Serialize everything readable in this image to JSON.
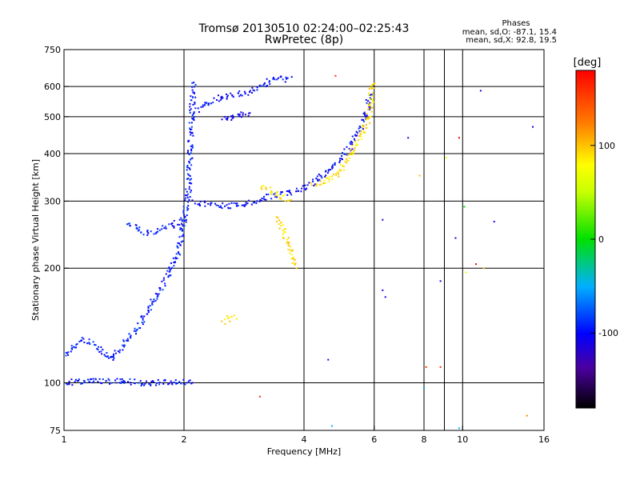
{
  "chart_data": {
    "type": "scatter",
    "title": "Tromsø 20130510 02:24:00–02:25:43",
    "subtitle": "RwPretec (8p)",
    "header_right": {
      "title": "Phases",
      "line_o": "mean, sd,O: -87.1, 15.4",
      "line_x": "mean, sd,X:  92.8, 19.5"
    },
    "xlabel": "Frequency [MHz]",
    "ylabel": "Stationary phase Virtual Height [km]",
    "x_scale": "log",
    "y_scale": "log",
    "xlim": [
      1,
      16
    ],
    "ylim": [
      75,
      750
    ],
    "x_ticks": [
      {
        "value": 1,
        "label": "1"
      },
      {
        "value": 2,
        "label": "2"
      },
      {
        "value": 4,
        "label": "4"
      },
      {
        "value": 6,
        "label": "6"
      },
      {
        "value": 8,
        "label": "8"
      },
      {
        "value": 10,
        "label": "10"
      },
      {
        "value": 16,
        "label": "16"
      }
    ],
    "y_ticks": [
      {
        "value": 75,
        "label": "75"
      },
      {
        "value": 100,
        "label": "100"
      },
      {
        "value": 200,
        "label": "200"
      },
      {
        "value": 300,
        "label": "300"
      },
      {
        "value": 400,
        "label": "400"
      },
      {
        "value": 500,
        "label": "500"
      },
      {
        "value": 600,
        "label": "600"
      },
      {
        "value": 750,
        "label": "750"
      }
    ],
    "x_grid": [
      2,
      4,
      6,
      8,
      9,
      10
    ],
    "y_grid": [
      100,
      200,
      300,
      400,
      500,
      600
    ],
    "grid": true,
    "colorbar": {
      "unit": "[deg]",
      "range": [
        -180,
        180
      ],
      "ticks": [
        {
          "value": 100,
          "label": "100"
        },
        {
          "value": 0,
          "label": "0"
        },
        {
          "value": -100,
          "label": "-100"
        }
      ]
    },
    "traces": [
      {
        "phase": -95,
        "points": [
          [
            1.0,
            118
          ],
          [
            1.04,
            122
          ],
          [
            1.08,
            126
          ],
          [
            1.12,
            130
          ],
          [
            1.18,
            126
          ],
          [
            1.25,
            120
          ],
          [
            1.32,
            116
          ],
          [
            1.4,
            124
          ],
          [
            1.48,
            134
          ],
          [
            1.55,
            142
          ],
          [
            1.62,
            154
          ],
          [
            1.7,
            168
          ],
          [
            1.78,
            182
          ],
          [
            1.86,
            198
          ],
          [
            1.93,
            222
          ],
          [
            2.0,
            262
          ],
          [
            2.05,
            320
          ],
          [
            2.08,
            420
          ],
          [
            2.1,
            520
          ],
          [
            2.12,
            620
          ]
        ]
      },
      {
        "phase": -100,
        "points": [
          [
            2.12,
            298
          ],
          [
            2.4,
            292
          ],
          [
            2.7,
            292
          ],
          [
            3.0,
            298
          ],
          [
            3.2,
            306
          ],
          [
            3.5,
            312
          ],
          [
            3.8,
            318
          ],
          [
            4.1,
            330
          ],
          [
            4.4,
            346
          ],
          [
            4.7,
            366
          ],
          [
            4.95,
            388
          ],
          [
            5.2,
            412
          ],
          [
            5.4,
            442
          ],
          [
            5.55,
            470
          ],
          [
            5.7,
            500
          ],
          [
            5.8,
            540
          ],
          [
            5.85,
            580
          ]
        ]
      },
      {
        "phase": 90,
        "points": [
          [
            4.2,
            330
          ],
          [
            4.5,
            338
          ],
          [
            4.8,
            352
          ],
          [
            5.0,
            368
          ],
          [
            5.2,
            392
          ],
          [
            5.4,
            418
          ],
          [
            5.6,
            450
          ],
          [
            5.75,
            480
          ],
          [
            5.85,
            520
          ],
          [
            5.9,
            560
          ],
          [
            5.95,
            620
          ]
        ]
      },
      {
        "phase": -100,
        "points": [
          [
            2.15,
            520
          ],
          [
            2.3,
            540
          ],
          [
            2.45,
            560
          ],
          [
            2.6,
            565
          ],
          [
            2.9,
            580
          ],
          [
            3.1,
            600
          ],
          [
            3.3,
            620
          ],
          [
            3.5,
            630
          ],
          [
            3.7,
            625
          ]
        ]
      },
      {
        "phase": -95,
        "points": [
          [
            1.0,
            100
          ],
          [
            1.1,
            101
          ],
          [
            1.2,
            101
          ],
          [
            1.3,
            101
          ],
          [
            1.4,
            101
          ],
          [
            1.55,
            100
          ],
          [
            1.7,
            100
          ],
          [
            1.9,
            101
          ],
          [
            2.1,
            100
          ]
        ]
      },
      {
        "phase": -95,
        "points": [
          [
            1.45,
            262
          ],
          [
            1.55,
            250
          ],
          [
            1.65,
            248
          ],
          [
            1.78,
            255
          ],
          [
            1.9,
            262
          ],
          [
            2.0,
            270
          ]
        ]
      },
      {
        "phase": 85,
        "points": [
          [
            3.1,
            330
          ],
          [
            3.3,
            320
          ],
          [
            3.5,
            310
          ],
          [
            3.7,
            300
          ]
        ]
      },
      {
        "phase": 90,
        "points": [
          [
            3.4,
            270
          ],
          [
            3.55,
            250
          ],
          [
            3.65,
            230
          ],
          [
            3.75,
            210
          ],
          [
            3.8,
            200
          ]
        ]
      },
      {
        "phase": 90,
        "points": [
          [
            2.5,
            145
          ],
          [
            2.6,
            148
          ],
          [
            2.7,
            150
          ]
        ]
      },
      {
        "phase": -110,
        "points": [
          [
            2.5,
            490
          ],
          [
            2.65,
            500
          ],
          [
            2.8,
            510
          ],
          [
            2.95,
            505
          ]
        ]
      }
    ],
    "isolated_points": [
      {
        "x": 6.3,
        "y": 175,
        "phase": -110
      },
      {
        "x": 6.4,
        "y": 168,
        "phase": -110
      },
      {
        "x": 8.8,
        "y": 185,
        "phase": -110
      },
      {
        "x": 9.6,
        "y": 240,
        "phase": -110
      },
      {
        "x": 12.0,
        "y": 265,
        "phase": -110
      },
      {
        "x": 15.0,
        "y": 470,
        "phase": -110
      },
      {
        "x": 4.6,
        "y": 115,
        "phase": -110
      },
      {
        "x": 6.3,
        "y": 268,
        "phase": -110
      },
      {
        "x": 7.3,
        "y": 440,
        "phase": -110
      },
      {
        "x": 11.1,
        "y": 585,
        "phase": -110
      },
      {
        "x": 9.8,
        "y": 440,
        "phase": 180
      },
      {
        "x": 10.8,
        "y": 205,
        "phase": 180
      },
      {
        "x": 3.1,
        "y": 92,
        "phase": 160
      },
      {
        "x": 4.8,
        "y": 640,
        "phase": 160
      },
      {
        "x": 8.1,
        "y": 110,
        "phase": 160
      },
      {
        "x": 8.8,
        "y": 110,
        "phase": 160
      },
      {
        "x": 14.5,
        "y": 82,
        "phase": 120
      },
      {
        "x": 7.8,
        "y": 350,
        "phase": 100
      },
      {
        "x": 11.3,
        "y": 200,
        "phase": 100
      },
      {
        "x": 10.1,
        "y": 290,
        "phase": 0
      },
      {
        "x": 9.1,
        "y": 390,
        "phase": 60
      },
      {
        "x": 10.2,
        "y": 195,
        "phase": 60
      },
      {
        "x": 4.7,
        "y": 77,
        "phase": -50
      },
      {
        "x": 8.0,
        "y": 97,
        "phase": -50
      },
      {
        "x": 9.8,
        "y": 76,
        "phase": -50
      }
    ]
  }
}
